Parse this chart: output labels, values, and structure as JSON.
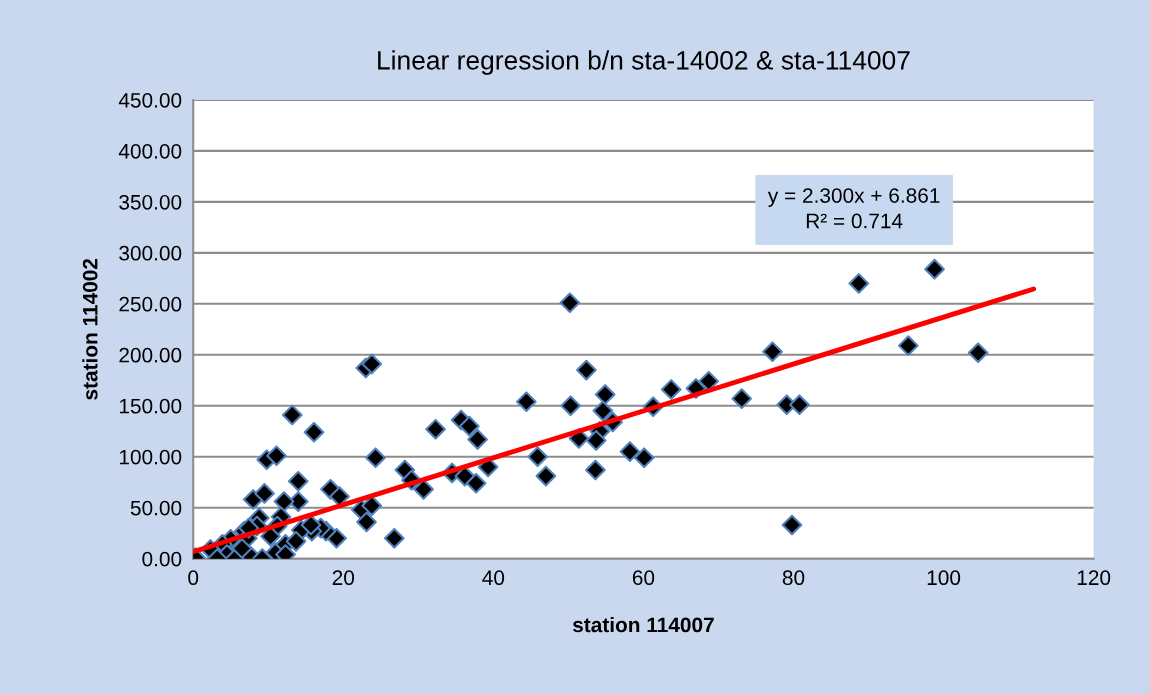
{
  "chart_data": {
    "type": "scatter",
    "title": "Linear regression b/n sta-14002 & sta-114007",
    "xlabel": "station 114007",
    "ylabel": "station 114002",
    "annotations": [
      "y = 2.300x + 6.861\nR² = 0.714"
    ],
    "xlim": [
      0,
      120
    ],
    "xticks": [
      0,
      20,
      40,
      60,
      80,
      100,
      120
    ],
    "ylim": [
      0,
      450
    ],
    "yticks": [
      {
        "value": 0,
        "label": "0.00"
      },
      {
        "value": 50,
        "label": "50.00"
      },
      {
        "value": 100,
        "label": "100.00"
      },
      {
        "value": 150,
        "label": "150.00"
      },
      {
        "value": 200,
        "label": "200.00"
      },
      {
        "value": 250,
        "label": "250.00"
      },
      {
        "value": 300,
        "label": "300.00"
      },
      {
        "value": 350,
        "label": "350.00"
      },
      {
        "value": 400,
        "label": "400.00"
      },
      {
        "value": 450,
        "label": "450.00"
      }
    ],
    "grid": "y",
    "legend": false,
    "marker": "diamond",
    "series": [
      {
        "color": "#000000",
        "x": [
          88.7,
          98.8,
          95.3,
          104.6,
          77.2,
          68.7,
          73.1,
          79.1,
          80.8,
          79.8,
          50.2,
          52.4,
          44.4,
          50.3,
          54.9,
          54.6,
          55.9,
          54.2,
          53.7,
          51.4,
          53.6,
          61.3,
          63.7,
          67.0,
          58.2,
          60.1,
          32.3,
          35.7,
          36.8,
          37.9,
          45.9,
          47.0,
          34.5,
          36.2,
          37.7,
          39.3,
          28.2,
          29.1,
          30.7,
          13.2,
          16.1,
          9.8,
          11.1,
          24.3,
          14.0,
          14.0,
          8.0,
          9.5,
          12.1,
          18.3,
          19.5,
          22.4,
          23.8,
          23.1,
          26.8,
          19.1,
          11.7,
          8.8,
          8.5,
          11.2,
          17.7,
          17.0,
          15.8,
          14.4,
          15.7,
          6.8,
          5.0,
          3.9,
          2.3,
          0.3,
          4.5,
          3.2,
          5.6,
          7.7,
          9.2,
          11.0,
          12.3,
          13.7,
          12.3,
          7.2,
          6.5,
          7.4,
          10.3,
          23.0,
          23.8
        ],
        "values": [
          270,
          284,
          209,
          202,
          203,
          174,
          157,
          151,
          151,
          33,
          251,
          185,
          154,
          150,
          161,
          145,
          134,
          125,
          116,
          118,
          87,
          149,
          166,
          167,
          105,
          99,
          127,
          136,
          130,
          117,
          100,
          81,
          84,
          81,
          74,
          90,
          87,
          77,
          68,
          141,
          124,
          97,
          101,
          99,
          76,
          56,
          58,
          64,
          56,
          68,
          61,
          48,
          52,
          36,
          20,
          20,
          41,
          40,
          32,
          32,
          27,
          30,
          27,
          28,
          33,
          27,
          19,
          14,
          9,
          1,
          4,
          0,
          0,
          2,
          0,
          6,
          14,
          17,
          4,
          20,
          10,
          30,
          22,
          187,
          191
        ]
      },
      {
        "type": "line",
        "color": "#ff0000",
        "marker": "none",
        "x": [
          0,
          112
        ],
        "values": [
          6.9,
          264.5
        ]
      }
    ]
  }
}
